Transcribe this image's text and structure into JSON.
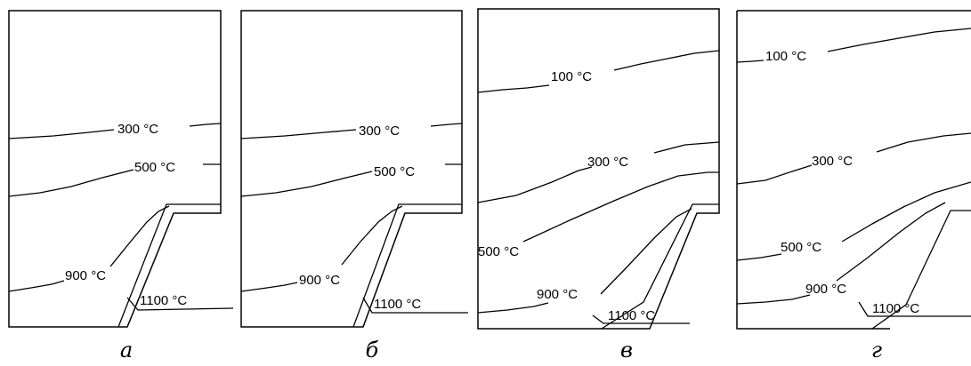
{
  "panels": [
    {
      "caption": "а",
      "labels": {
        "iso_300": "300 °C",
        "iso_500": "500 °C",
        "iso_900": "900 °C",
        "iso_1100": "1100 °C"
      }
    },
    {
      "caption": "б",
      "labels": {
        "iso_300": "300 °C",
        "iso_500": "500 °C",
        "iso_900": "900 °C",
        "iso_1100": "1100 °C"
      }
    },
    {
      "caption": "в",
      "labels": {
        "iso_100": "100 °C",
        "iso_300": "300 °C",
        "iso_500": "500 °C",
        "iso_900": "900 °C",
        "iso_1100": "1100 °C"
      }
    },
    {
      "caption": "г",
      "labels": {
        "iso_100": "100 °C",
        "iso_300": "300 °C",
        "iso_500": "500 °C",
        "iso_900": "900 °C",
        "iso_1100": "1100 °C"
      }
    }
  ]
}
